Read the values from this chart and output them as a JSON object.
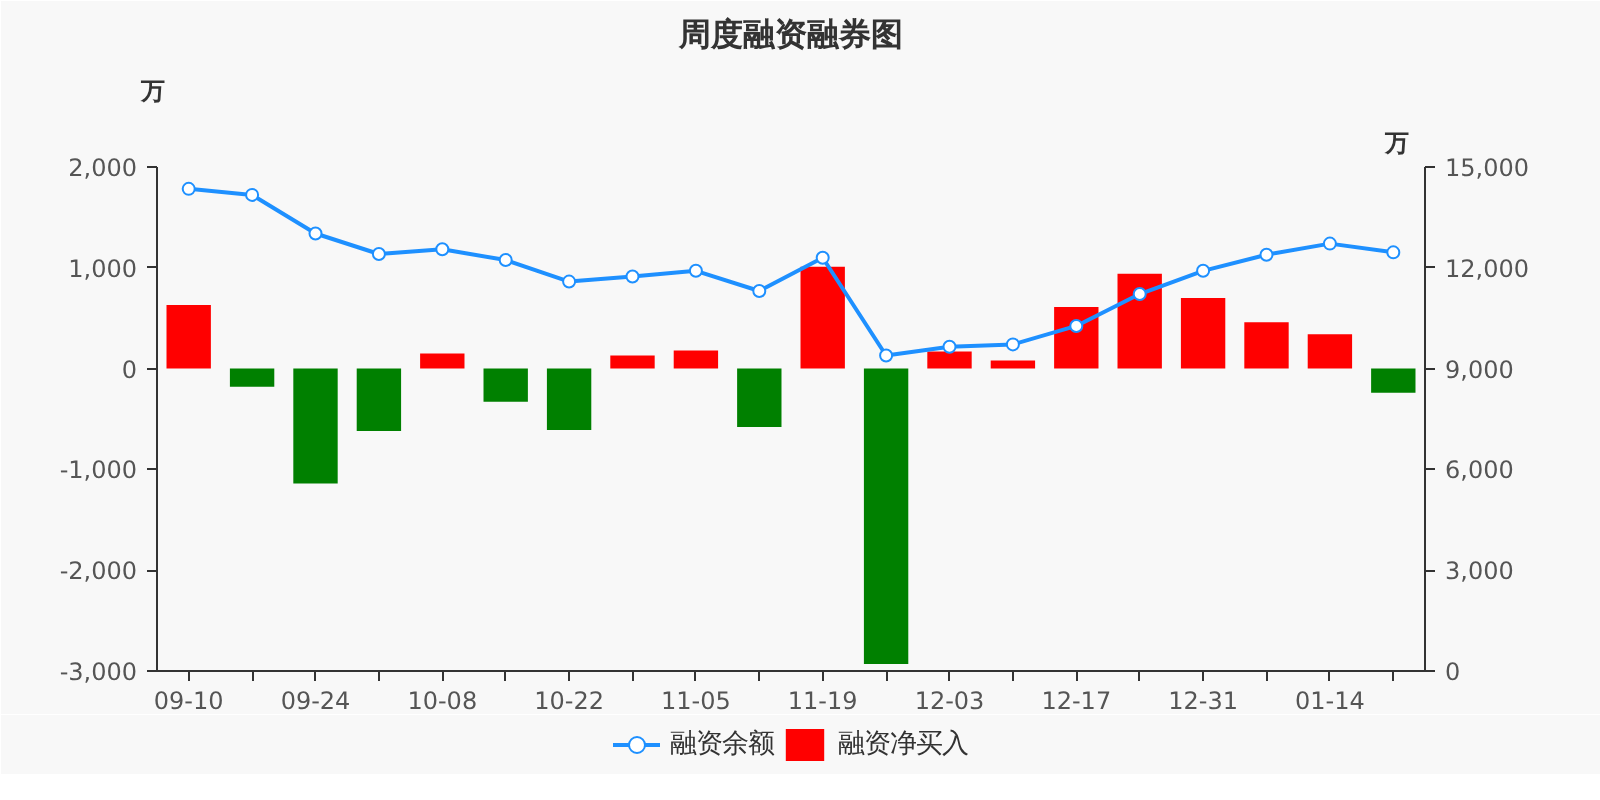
{
  "chart_data": {
    "type": "bar",
    "title": "周度融资融券图",
    "ylabel": "万",
    "y2label": "万",
    "categories": [
      "09-10",
      null,
      "09-24",
      null,
      "10-08",
      null,
      "10-22",
      null,
      "11-05",
      null,
      "11-19",
      null,
      "12-03",
      null,
      "12-17",
      null,
      "12-31",
      null,
      "01-14",
      null
    ],
    "series": [
      {
        "name": "融资余额",
        "type": "line",
        "axis": "y2",
        "color": "#1e90ff",
        "marker": "circle",
        "values": [
          14350,
          14170,
          13020,
          12410,
          12550,
          12230,
          11590,
          11740,
          11910,
          11310,
          12300,
          9390,
          9650,
          9720,
          10270,
          11220,
          11910,
          12390,
          12720,
          12460
        ]
      },
      {
        "name": "融资净买入",
        "color": "#ff0000",
        "colors": [
          "#ff0000",
          "#008000",
          "#008000",
          "#008000",
          "#ff0000",
          "#008000",
          "#008000",
          "#ff0000",
          "#ff0000",
          "#008000",
          "#ff0000",
          "#008000",
          "#ff0000",
          "#ff0000",
          "#ff0000",
          "#ff0000",
          "#ff0000",
          "#ff0000",
          "#ff0000",
          "#008000"
        ],
        "values": [
          630,
          -180,
          -1140,
          -620,
          150,
          -330,
          -610,
          130,
          180,
          -580,
          1010,
          -2930,
          170,
          80,
          610,
          940,
          700,
          460,
          340,
          -240
        ]
      }
    ],
    "ylim": [
      -3000,
      2000
    ],
    "yticks": [
      {
        "value": -3000,
        "label": "-3,000"
      },
      {
        "value": -2000,
        "label": "-2,000"
      },
      {
        "value": -1000,
        "label": "-1,000"
      },
      0,
      {
        "value": 1000,
        "label": "1,000"
      },
      {
        "value": 2000,
        "label": "2,000"
      }
    ],
    "y2lim": [
      0,
      15000
    ],
    "y2ticks": [
      0,
      {
        "value": 3000,
        "label": "3,000"
      },
      {
        "value": 6000,
        "label": "6,000"
      },
      {
        "value": 9000,
        "label": "9,000"
      },
      {
        "value": 12000,
        "label": "12,000"
      },
      {
        "value": 15000,
        "label": "15,000"
      }
    ],
    "grid": false,
    "legend": "bottom"
  }
}
